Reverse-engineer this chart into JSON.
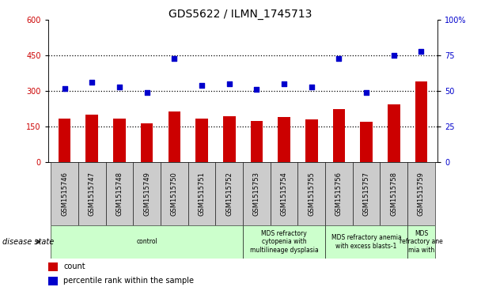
{
  "title": "GDS5622 / ILMN_1745713",
  "samples": [
    "GSM1515746",
    "GSM1515747",
    "GSM1515748",
    "GSM1515749",
    "GSM1515750",
    "GSM1515751",
    "GSM1515752",
    "GSM1515753",
    "GSM1515754",
    "GSM1515755",
    "GSM1515756",
    "GSM1515757",
    "GSM1515758",
    "GSM1515759"
  ],
  "counts": [
    185,
    200,
    185,
    165,
    215,
    185,
    195,
    175,
    190,
    180,
    225,
    170,
    245,
    340
  ],
  "percentile_ranks": [
    52,
    56,
    53,
    49,
    73,
    54,
    55,
    51,
    55,
    53,
    73,
    49,
    75,
    78
  ],
  "bar_color": "#cc0000",
  "dot_color": "#0000cc",
  "left_ylim": [
    0,
    600
  ],
  "right_ylim": [
    0,
    100
  ],
  "left_yticks": [
    0,
    150,
    300,
    450,
    600
  ],
  "right_yticks": [
    0,
    25,
    50,
    75,
    100
  ],
  "right_yticklabels": [
    "0",
    "25",
    "50",
    "75",
    "100%"
  ],
  "hline_values": [
    150,
    300,
    450
  ],
  "disease_groups": [
    {
      "label": "control",
      "start": 0,
      "end": 7
    },
    {
      "label": "MDS refractory\ncytopenia with\nmultilineage dysplasia",
      "start": 7,
      "end": 10
    },
    {
      "label": "MDS refractory anemia\nwith excess blasts-1",
      "start": 10,
      "end": 13
    },
    {
      "label": "MDS\nrefractory ane\nmia with",
      "start": 13,
      "end": 14
    }
  ],
  "disease_group_color": "#ccffcc",
  "disease_state_label": "disease state",
  "legend_count_label": "count",
  "legend_percentile_label": "percentile rank within the sample",
  "sample_box_color": "#cccccc",
  "bar_width": 0.45,
  "dot_size": 18,
  "tick_label_fontsize": 6,
  "title_fontsize": 10,
  "hline_color": "black",
  "hline_style": "dotted",
  "hline_lw": 0.9
}
